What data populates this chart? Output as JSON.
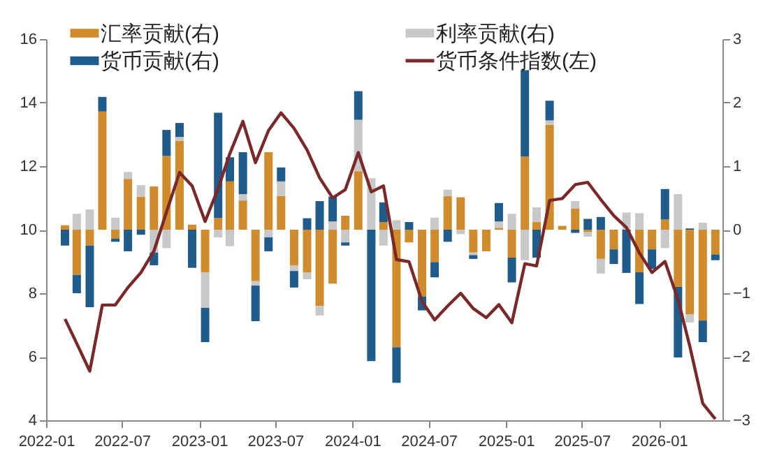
{
  "chart_data": {
    "type": "bar",
    "stacked": true,
    "legend": "top",
    "marker": "none",
    "line_style": "solid",
    "x": [
      "2022-02-15",
      "2022-03-15",
      "2022-04-15",
      "2022-05-15",
      "2022-06-15",
      "2022-07-15",
      "2022-08-15",
      "2022-09-15",
      "2022-10-15",
      "2022-11-15",
      "2022-12-15",
      "2023-01-15",
      "2023-02-15",
      "2023-03-15",
      "2023-04-15",
      "2023-05-15",
      "2023-06-15",
      "2023-07-15",
      "2023-08-15",
      "2023-09-15",
      "2023-10-15",
      "2023-11-15",
      "2023-12-15",
      "2024-01-15",
      "2024-02-15",
      "2024-03-15",
      "2024-04-15",
      "2024-05-15",
      "2024-06-15",
      "2024-07-15",
      "2024-08-15",
      "2024-09-15",
      "2024-10-15",
      "2024-11-15",
      "2024-12-15",
      "2025-01-15",
      "2025-02-15",
      "2025-03-15",
      "2025-04-15",
      "2025-05-15",
      "2025-06-15",
      "2025-07-15",
      "2025-08-15",
      "2025-09-15",
      "2025-10-15",
      "2025-11-15",
      "2025-12-15",
      "2026-01-15",
      "2026-02-15",
      "2026-03-15",
      "2026-04-15",
      "2026-05-15"
    ],
    "xlim": [
      "2022-01",
      "2026-06"
    ],
    "xticks": [
      "2022-01",
      "2022-07",
      "2023-01",
      "2023-07",
      "2024-01",
      "2024-07",
      "2025-01",
      "2025-07",
      "2026-01"
    ],
    "ylim": [
      4,
      16
    ],
    "yticks": [
      4,
      6,
      8,
      10,
      12,
      14,
      16
    ],
    "y2lim": [
      -3,
      3
    ],
    "y2ticks": [
      -3,
      -2,
      -1,
      0,
      1,
      2,
      3
    ],
    "series": [
      {
        "name": "汇率贡献(右)",
        "type": "bar",
        "axis": "y2",
        "color": "#d08b2c",
        "values": [
          0.07,
          -0.71,
          -0.25,
          1.86,
          -0.14,
          0.8,
          0.52,
          0.68,
          1.16,
          1.4,
          0.08,
          -0.67,
          0.18,
          0.76,
          0.46,
          -0.81,
          1.22,
          0.53,
          -0.56,
          -0.67,
          -1.2,
          -0.85,
          0.22,
          0.92,
          null,
          0.12,
          -1.85,
          -0.2,
          -1.05,
          -0.51,
          0.53,
          0.51,
          -0.36,
          -0.34,
          0.03,
          -0.44,
          1.15,
          0.12,
          1.65,
          0.06,
          0.33,
          -0.04,
          -0.46,
          -0.31,
          null,
          -0.67,
          -0.31,
          0.16,
          -0.9,
          -1.33,
          -1.43,
          -0.39
        ]
      },
      {
        "name": "利率贡献(右)",
        "type": "bar",
        "axis": "y2",
        "color": "#c8c8c8",
        "values": [
          null,
          0.25,
          0.32,
          null,
          0.19,
          0.11,
          0.18,
          -0.36,
          -0.29,
          0.06,
          null,
          -0.56,
          -0.12,
          -0.26,
          0.1,
          -0.07,
          -0.12,
          0.23,
          -0.09,
          -0.11,
          -0.15,
          0.13,
          -0.2,
          0.81,
          0.81,
          -0.25,
          0.15,
          null,
          null,
          0.19,
          0.1,
          -0.07,
          -0.04,
          null,
          0.1,
          0.25,
          -0.48,
          0.23,
          0.07,
          null,
          0.12,
          -0.07,
          -0.23,
          null,
          0.27,
          0.26,
          null,
          -0.29,
          0.56,
          -0.13,
          0.11,
          null
        ]
      },
      {
        "name": "货币贡献(右)",
        "type": "bar",
        "axis": "y2",
        "color": "#1f5b8b",
        "values": [
          -0.25,
          -0.29,
          -0.97,
          0.23,
          -0.05,
          -0.34,
          -0.08,
          -0.2,
          0.41,
          0.22,
          -0.6,
          -0.54,
          1.66,
          0.38,
          0.66,
          -0.56,
          -0.22,
          0.22,
          -0.26,
          0.18,
          0.45,
          0.39,
          -0.05,
          0.45,
          -2.07,
          0.31,
          -0.56,
          0.12,
          -0.22,
          -0.24,
          -0.19,
          null,
          -0.06,
          null,
          0.29,
          -0.39,
          1.36,
          -0.44,
          0.31,
          null,
          -0.05,
          0.17,
          0.2,
          -0.23,
          -0.68,
          -0.5,
          -0.31,
          0.48,
          -1.11,
          0.02,
          -0.34,
          -0.09
        ]
      },
      {
        "name": "货币条件指数(左)",
        "type": "line",
        "color": "#7a2828",
        "values": [
          7.19,
          6.42,
          5.55,
          7.63,
          7.63,
          8.18,
          8.65,
          9.33,
          10.56,
          11.8,
          11.38,
          10.26,
          11.3,
          12.4,
          13.41,
          12.11,
          13.12,
          13.68,
          13.19,
          12.51,
          11.63,
          11.0,
          11.26,
          12.43,
          11.19,
          11.38,
          9.06,
          8.99,
          7.74,
          7.16,
          7.6,
          8.0,
          7.52,
          7.23,
          7.64,
          7.07,
          8.93,
          8.86,
          10.92,
          10.98,
          11.42,
          11.49,
          10.95,
          10.44,
          10.07,
          9.27,
          8.65,
          9.0,
          7.8,
          6.34,
          4.53,
          4.04
        ]
      }
    ]
  }
}
